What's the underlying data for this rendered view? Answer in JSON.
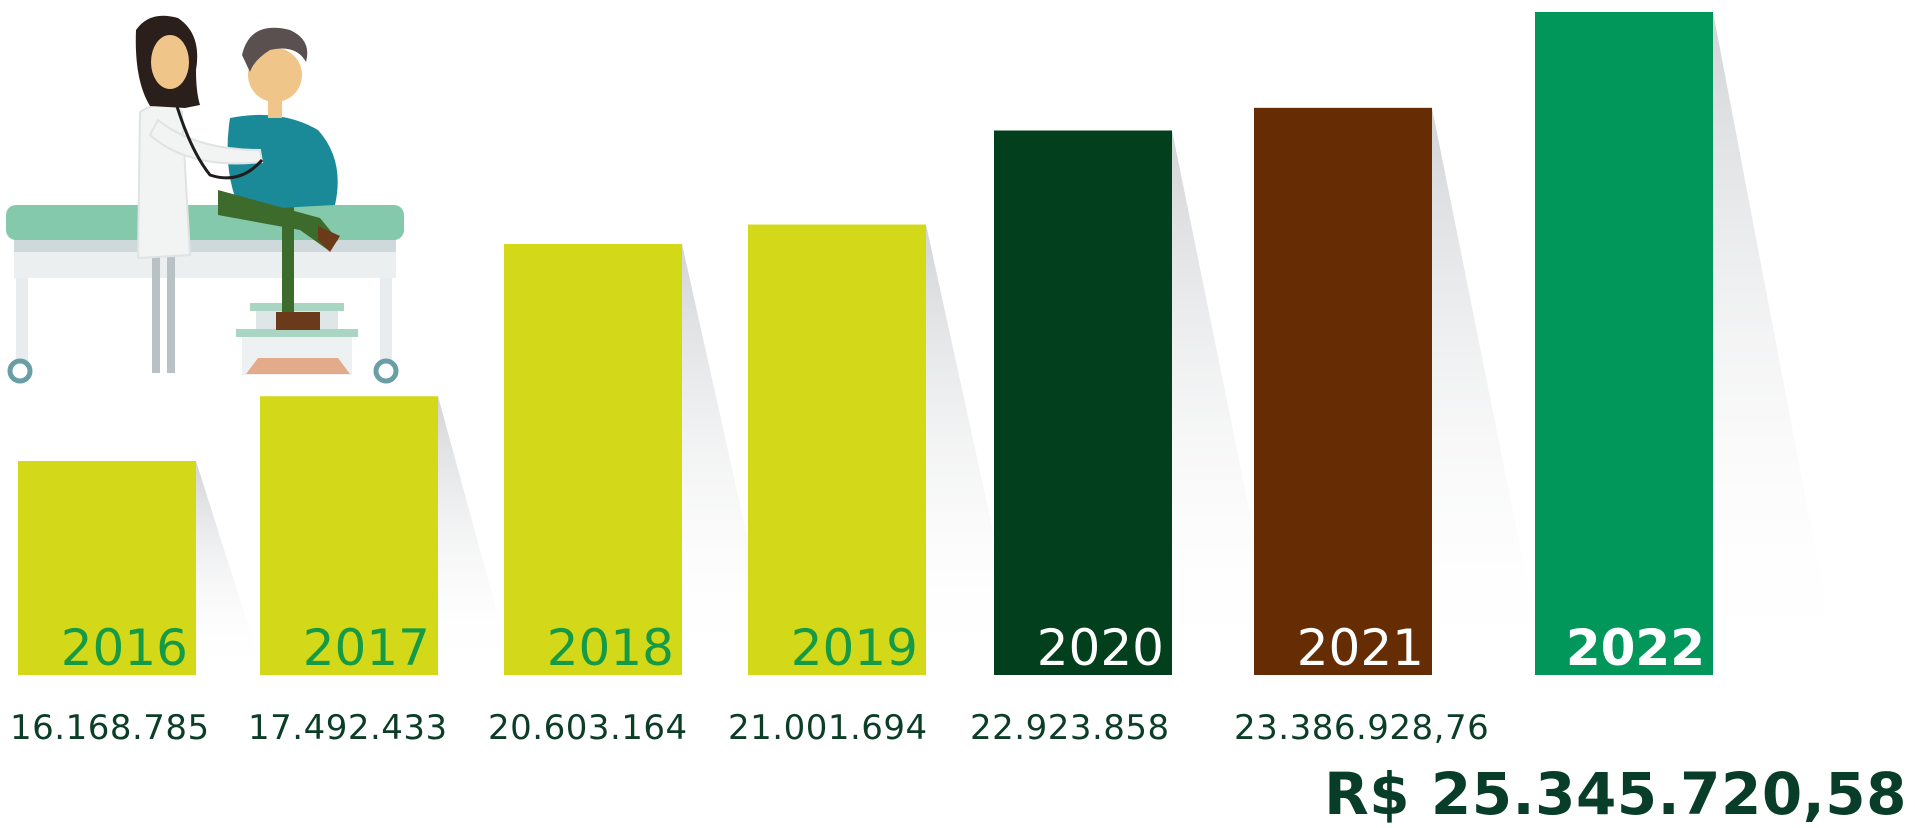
{
  "chart_data": {
    "type": "bar",
    "categories": [
      "2016",
      "2017",
      "2018",
      "2019",
      "2020",
      "2021",
      "2022"
    ],
    "values": [
      16168785,
      17492433,
      20603164,
      21001694,
      22923858,
      23386928.76,
      25345720.58
    ],
    "value_labels": [
      "16.168.785",
      "17.492.433",
      "20.603.164",
      "21.001.694",
      "22.923.858",
      "23.386.928,76",
      "R$ 25.345.720,58"
    ],
    "bar_colors": [
      "#d3d818",
      "#d3d818",
      "#d3d818",
      "#d3d818",
      "#023f1c",
      "#662d04",
      "#01975a"
    ],
    "label_colors": [
      "#159a46",
      "#159a46",
      "#159a46",
      "#159a46",
      "#ffffff",
      "#ffffff",
      "#ffffff"
    ],
    "emphasized_category": "2022",
    "title": "",
    "xlabel": "",
    "ylabel": "",
    "grid": false,
    "legend": "none"
  },
  "illustration": {
    "description_icon": "doctor-examining-patient-illustration"
  },
  "colors": {
    "value_text": "#0b3d27",
    "shadow": "#d9dadc"
  }
}
